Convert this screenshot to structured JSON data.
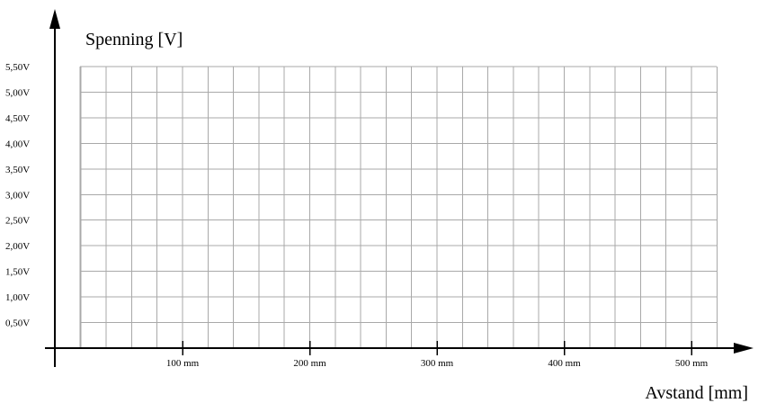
{
  "chart_data": {
    "type": "line",
    "title": "",
    "ylabel": "Spenning [V]",
    "xlabel": "Avstand [mm]",
    "xlim": [
      -20,
      525
    ],
    "ylim": [
      0,
      5.5
    ],
    "y_ticks": [
      0.5,
      1.0,
      1.5,
      2.0,
      2.5,
      3.0,
      3.5,
      4.0,
      4.5,
      5.0,
      5.5
    ],
    "y_tick_labels": [
      "0,50V",
      "1,00V",
      "1,50V",
      "2,00V",
      "2,50V",
      "3,00V",
      "3,50V",
      "4,00V",
      "4,50V",
      "5,00V",
      "5,50V"
    ],
    "x_ticks": [
      100,
      200,
      300,
      400,
      500
    ],
    "x_tick_labels": [
      "100 mm",
      "200 mm",
      "300 mm",
      "400 mm",
      "500 mm"
    ],
    "grid": true,
    "grid_x_step_mm": 20,
    "grid_y_step_v": 0.5,
    "series": []
  },
  "colors": {
    "grid": "#a9a9a9",
    "axis": "#000000",
    "background": "#ffffff"
  }
}
